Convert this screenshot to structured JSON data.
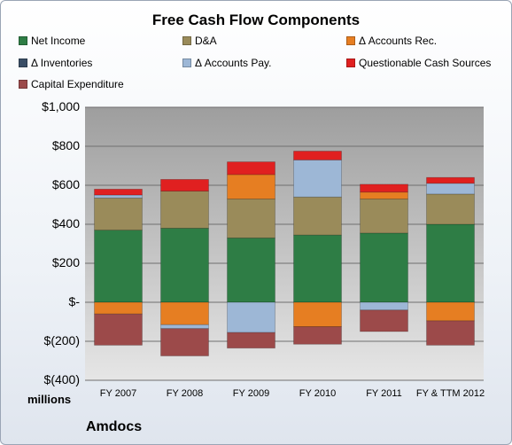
{
  "chart_data": {
    "type": "bar",
    "stacked": true,
    "title": "Free Cash Flow Components",
    "units_label": "millions",
    "footer_label": "Amdocs",
    "categories": [
      "FY 2007",
      "FY 2008",
      "FY 2009",
      "FY 2010",
      "FY 2011",
      "FY & TTM 2012"
    ],
    "ylim": [
      -400,
      1000
    ],
    "yticks": [
      1000,
      800,
      600,
      400,
      200,
      0,
      -200,
      -400
    ],
    "ytick_labels": [
      "$1,000",
      "$800",
      "$600",
      "$400",
      "$200",
      "$-",
      "$(200)",
      "$(400)"
    ],
    "grid": true,
    "legend_position": "top",
    "series": [
      {
        "name": "Net Income",
        "color": "#2e7d45",
        "values": [
          370,
          380,
          330,
          345,
          355,
          400
        ]
      },
      {
        "name": "D&A",
        "color": "#9a8b5a",
        "values": [
          165,
          190,
          200,
          195,
          175,
          155
        ]
      },
      {
        "name": "Δ Accounts Rec.",
        "color": "#e67e22",
        "values": [
          -60,
          -115,
          125,
          -125,
          35,
          -95
        ]
      },
      {
        "name": "Δ Inventories",
        "color": "#3a4e66",
        "values": [
          0,
          0,
          0,
          0,
          0,
          0
        ]
      },
      {
        "name": "Δ Accounts Pay.",
        "color": "#9db7d6",
        "values": [
          15,
          -20,
          -155,
          190,
          -40,
          55
        ]
      },
      {
        "name": "Questionable Cash Sources",
        "color": "#e02020",
        "values": [
          30,
          60,
          65,
          45,
          40,
          30
        ]
      },
      {
        "name": "Capital Expenditure",
        "color": "#9c4a4a",
        "values": [
          -160,
          -140,
          -80,
          -90,
          -110,
          -125
        ]
      }
    ]
  }
}
